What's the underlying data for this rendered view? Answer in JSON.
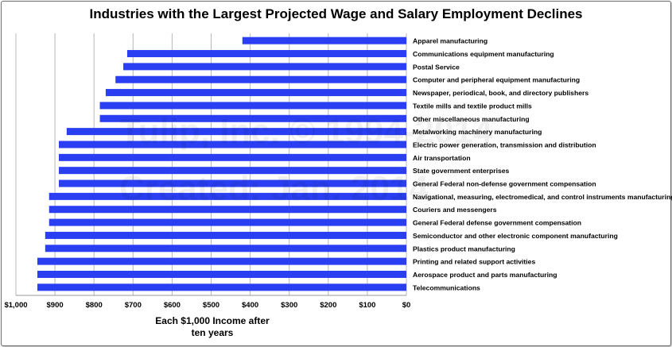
{
  "chart_data": {
    "type": "bar",
    "orientation": "horizontal",
    "title": "Industries with the Largest Projected Wage and Salary Employment Declines",
    "xlabel": "Each $1,000 Income after ten years",
    "ylabel": "",
    "xlim": [
      1000,
      0
    ],
    "x_axis_reversed": true,
    "tick_values": [
      1000,
      900,
      800,
      700,
      600,
      500,
      400,
      300,
      200,
      100,
      0
    ],
    "tick_labels": [
      "$1,000",
      "$900",
      "$800",
      "$700",
      "$600",
      "$500",
      "$400",
      "$300",
      "$200",
      "$100",
      "$0"
    ],
    "grid": "vertical",
    "legend": "none",
    "bar_color": "#2a3ff2",
    "categories": [
      "Apparel manufacturing",
      "Communications equipment manufacturing",
      "Postal Service",
      "Computer and peripheral equipment manufacturing",
      "Newspaper, periodical, book, and directory publishers",
      "Textile mills and textile product mills",
      "Other miscellaneous manufacturing",
      "Metalworking machinery manufacturing",
      "Electric power generation, transmission and distribution",
      "Air transportation",
      "State government enterprises",
      "General Federal non-defense government compensation",
      "Navigational, measuring, electromedical, and control instruments manufacturing",
      "Couriers and messengers",
      "General Federal defense government compensation",
      "Semiconductor and other electronic component manufacturing",
      "Plastics product manufacturing",
      "Printing and related support activities",
      "Aerospace product and parts manufacturing",
      "Telecommunications"
    ],
    "values": [
      420,
      715,
      725,
      745,
      770,
      785,
      785,
      870,
      890,
      890,
      890,
      890,
      915,
      915,
      915,
      925,
      925,
      945,
      945,
      945
    ]
  },
  "watermark": {
    "line1": "Tulip, Inc. © 1994-2014",
    "line2": "Created: Jan. 2014"
  }
}
